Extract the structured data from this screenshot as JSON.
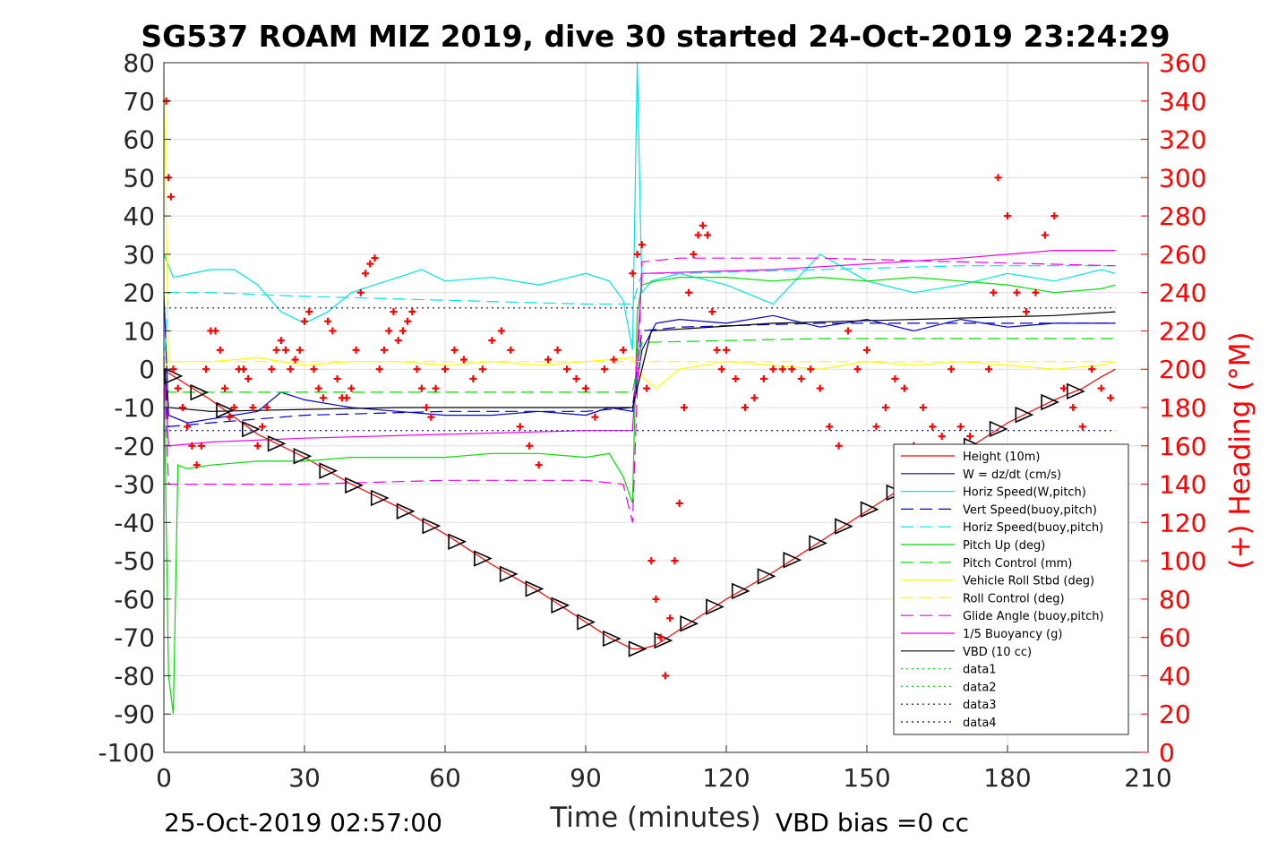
{
  "chart_data": {
    "type": "line",
    "title": "SG537 ROAM MIZ 2019, dive 30 started 24-Oct-2019 23:24:29",
    "xlabel": "Time (minutes)",
    "ylabel": "",
    "ylabel_right": "(+) Heading (°M)",
    "xlim": [
      0,
      210
    ],
    "ylim": [
      -100,
      80
    ],
    "ylim_right": [
      0,
      360
    ],
    "x_ticks": [
      "0",
      "30",
      "60",
      "90",
      "120",
      "150",
      "180",
      "210"
    ],
    "y_ticks": [
      "80",
      "70",
      "60",
      "50",
      "40",
      "30",
      "20",
      "10",
      "0",
      "-10",
      "-20",
      "-30",
      "-40",
      "-50",
      "-60",
      "-70",
      "-80",
      "-90",
      "-100"
    ],
    "y_ticks_right": [
      "360",
      "340",
      "320",
      "300",
      "280",
      "260",
      "240",
      "220",
      "200",
      "180",
      "160",
      "140",
      "120",
      "100",
      "80",
      "60",
      "40",
      "20",
      "0"
    ],
    "grid": true,
    "legend_position": "lower-right",
    "footer_left": "25-Oct-2019 02:57:00",
    "footer_right": "VBD bias =0 cc",
    "colors": {
      "heading": "#ff0000",
      "axis": "#262626",
      "grid": "#dfdfdf"
    },
    "series": [
      {
        "name": "Height (10m)",
        "color": "#ff0000",
        "style": "solid",
        "x": [
          0,
          1,
          10,
          20,
          30,
          40,
          50,
          60,
          70,
          80,
          90,
          95,
          100,
          102,
          105,
          110,
          120,
          130,
          140,
          150,
          160,
          170,
          180,
          190,
          196,
          200,
          203
        ],
        "y": [
          0,
          -1,
          -8,
          -17,
          -23,
          -30,
          -36,
          -43,
          -51,
          -58,
          -66,
          -70,
          -73,
          -73,
          -72,
          -68,
          -60,
          -53,
          -45,
          -37,
          -29,
          -22,
          -14,
          -8,
          -5,
          -2,
          0
        ]
      },
      {
        "name": "W = dz/dt (cm/s)",
        "color": "#0000cc",
        "style": "solid",
        "x": [
          0,
          1,
          5,
          10,
          20,
          25,
          30,
          40,
          50,
          60,
          70,
          80,
          90,
          95,
          100,
          102,
          105,
          110,
          120,
          130,
          140,
          150,
          160,
          170,
          180,
          190,
          200,
          203
        ],
        "y": [
          20,
          -12,
          -14,
          -13,
          -11,
          -6,
          -8,
          -10,
          -11,
          -12,
          -12,
          -11,
          -12,
          -10,
          -11,
          5,
          12,
          13,
          12,
          14,
          11,
          13,
          10,
          13,
          11,
          12,
          12,
          12
        ]
      },
      {
        "name": "Horiz Speed(W,pitch)",
        "color": "#00e5e5",
        "style": "solid",
        "x": [
          0,
          2,
          10,
          15,
          20,
          25,
          30,
          35,
          40,
          45,
          50,
          55,
          60,
          70,
          80,
          90,
          95,
          98,
          100,
          101,
          102,
          104,
          110,
          120,
          130,
          140,
          150,
          160,
          170,
          180,
          190,
          200,
          203
        ],
        "y": [
          30,
          24,
          26,
          26,
          22,
          15,
          12,
          15,
          20,
          22,
          24,
          26,
          23,
          24,
          22,
          25,
          23,
          18,
          5,
          80,
          20,
          23,
          25,
          22,
          17,
          30,
          23,
          20,
          22,
          25,
          23,
          26,
          25
        ]
      },
      {
        "name": "Vert Speed(buoy,pitch)",
        "color": "#0000cc",
        "style": "dash",
        "x": [
          0,
          1,
          10,
          30,
          60,
          90,
          100,
          102,
          110,
          140,
          170,
          203
        ],
        "y": [
          0,
          -15,
          -14,
          -12,
          -11,
          -11,
          -10,
          10,
          11,
          12,
          12,
          12
        ]
      },
      {
        "name": "Horiz Speed(buoy,pitch)",
        "color": "#00e5e5",
        "style": "dash",
        "x": [
          0,
          1,
          10,
          30,
          60,
          90,
          100,
          102,
          110,
          140,
          170,
          203
        ],
        "y": [
          0,
          20,
          20,
          19,
          18,
          17,
          17,
          25,
          25,
          26,
          27,
          27
        ]
      },
      {
        "name": "Pitch Up (deg)",
        "color": "#00dd00",
        "style": "solid",
        "x": [
          0,
          1,
          2,
          3,
          5,
          10,
          20,
          30,
          40,
          50,
          60,
          70,
          80,
          90,
          95,
          98,
          100,
          101,
          102,
          105,
          110,
          120,
          130,
          140,
          150,
          160,
          170,
          180,
          190,
          200,
          203
        ],
        "y": [
          0,
          -80,
          -90,
          -25,
          -26,
          -25,
          -24,
          -24,
          -23,
          -23,
          -23,
          -22,
          -22,
          -23,
          -22,
          -28,
          -35,
          15,
          22,
          23,
          24,
          24,
          23,
          24,
          23,
          24,
          23,
          22,
          20,
          21,
          22
        ]
      },
      {
        "name": "Pitch Control (mm)",
        "color": "#00dd00",
        "style": "dash",
        "x": [
          0,
          1,
          30,
          60,
          100,
          102,
          140,
          203
        ],
        "y": [
          0,
          -6,
          -6,
          -6,
          -6,
          7,
          8,
          8
        ]
      },
      {
        "name": "Vehicle Roll Stbd (deg)",
        "color": "#ffff00",
        "style": "solid",
        "x": [
          0,
          1,
          3,
          10,
          20,
          30,
          40,
          50,
          60,
          70,
          80,
          90,
          100,
          102,
          105,
          110,
          120,
          130,
          140,
          150,
          160,
          170,
          180,
          190,
          200,
          203
        ],
        "y": [
          80,
          2,
          2,
          2,
          3,
          1,
          2,
          2,
          1,
          2,
          1,
          2,
          3,
          -2,
          -5,
          0,
          2,
          1,
          0,
          2,
          1,
          2,
          1,
          0,
          1,
          2
        ]
      },
      {
        "name": "Roll Control (deg)",
        "color": "#ffff00",
        "style": "dash",
        "x": [
          0,
          1,
          30,
          60,
          100,
          102,
          140,
          203
        ],
        "y": [
          0,
          2,
          2,
          2,
          2,
          2,
          2,
          2
        ]
      },
      {
        "name": "Glide Angle (buoy,pitch)",
        "color": "#ee00ee",
        "style": "dash",
        "x": [
          0,
          1,
          10,
          30,
          60,
          90,
          98,
          100,
          102,
          110,
          140,
          170,
          203
        ],
        "y": [
          0,
          -30,
          -30,
          -30,
          -29,
          -29,
          -30,
          -40,
          28,
          29,
          29,
          28,
          27
        ]
      },
      {
        "name": "1/5 Buoyancy (g)",
        "color": "#ee00ee",
        "style": "solid",
        "x": [
          0,
          1,
          10,
          30,
          60,
          90,
          100,
          102,
          130,
          170,
          190,
          203
        ],
        "y": [
          0,
          -20,
          -19,
          -18,
          -17,
          -16,
          -16,
          25,
          26,
          29,
          31,
          31
        ]
      },
      {
        "name": "VBD (10 cc)",
        "color": "#000000",
        "style": "solid",
        "x": [
          0,
          1,
          10,
          50,
          80,
          100,
          103,
          104,
          130,
          160,
          190,
          203
        ],
        "y": [
          0,
          -10,
          -11,
          -10,
          -10,
          -10,
          5,
          10,
          12,
          13,
          14,
          15
        ]
      },
      {
        "name": "data1",
        "color": "#00dd00",
        "style": "dot",
        "x": [],
        "y": []
      },
      {
        "name": "data2",
        "color": "#00dd00",
        "style": "dot",
        "x": [],
        "y": []
      },
      {
        "name": "data3",
        "color": "#0000aa",
        "style": "dot",
        "x": [
          0,
          203
        ],
        "y": [
          16,
          16
        ]
      },
      {
        "name": "data4",
        "color": "#0000aa",
        "style": "dot",
        "x": [
          0,
          203
        ],
        "y": [
          -16,
          -16
        ]
      }
    ],
    "heading_points": {
      "axis": "right",
      "color": "#ff0000",
      "marker": "+",
      "x": [
        0.5,
        1,
        1.5,
        2,
        3,
        4,
        5,
        6,
        7,
        8,
        9,
        10,
        11,
        12,
        13,
        14,
        15,
        16,
        17,
        18,
        19,
        20,
        21,
        22,
        23,
        24,
        25,
        26,
        27,
        28,
        29,
        30,
        31,
        32,
        33,
        34,
        35,
        36,
        37,
        38,
        39,
        40,
        41,
        42,
        43,
        44,
        45,
        46,
        47,
        48,
        49,
        50,
        51,
        52,
        53,
        54,
        55,
        56,
        57,
        58,
        60,
        62,
        64,
        66,
        68,
        70,
        72,
        74,
        76,
        78,
        80,
        82,
        84,
        86,
        88,
        90,
        92,
        94,
        96,
        98,
        100,
        101,
        102,
        103,
        104,
        105,
        106,
        107,
        108,
        109,
        110,
        111,
        112,
        113,
        114,
        115,
        116,
        117,
        118,
        119,
        120,
        122,
        124,
        126,
        128,
        130,
        132,
        134,
        136,
        138,
        140,
        142,
        144,
        146,
        148,
        150,
        152,
        154,
        156,
        158,
        160,
        162,
        164,
        166,
        168,
        170,
        172,
        174,
        176,
        177,
        178,
        180,
        182,
        184,
        186,
        188,
        190,
        192,
        194,
        196,
        198,
        200,
        202
      ],
      "y": [
        340,
        300,
        290,
        200,
        190,
        180,
        170,
        160,
        150,
        160,
        200,
        220,
        220,
        210,
        190,
        175,
        180,
        200,
        200,
        195,
        180,
        160,
        170,
        180,
        200,
        210,
        215,
        210,
        200,
        205,
        210,
        225,
        230,
        200,
        190,
        185,
        225,
        220,
        195,
        185,
        185,
        190,
        210,
        240,
        250,
        255,
        258,
        200,
        210,
        220,
        230,
        215,
        220,
        225,
        230,
        200,
        190,
        180,
        175,
        190,
        200,
        210,
        205,
        195,
        200,
        215,
        220,
        210,
        170,
        160,
        150,
        205,
        210,
        200,
        195,
        190,
        175,
        200,
        205,
        210,
        250,
        260,
        265,
        190,
        100,
        80,
        60,
        40,
        70,
        100,
        130,
        180,
        240,
        260,
        270,
        275,
        270,
        230,
        210,
        200,
        210,
        195,
        180,
        185,
        195,
        200,
        200,
        200,
        195,
        200,
        190,
        170,
        160,
        220,
        200,
        210,
        170,
        180,
        195,
        190,
        160,
        180,
        170,
        165,
        200,
        170,
        165,
        150,
        200,
        240,
        300,
        280,
        240,
        230,
        240,
        270,
        280,
        190,
        180,
        170,
        200,
        190,
        185
      ]
    }
  }
}
